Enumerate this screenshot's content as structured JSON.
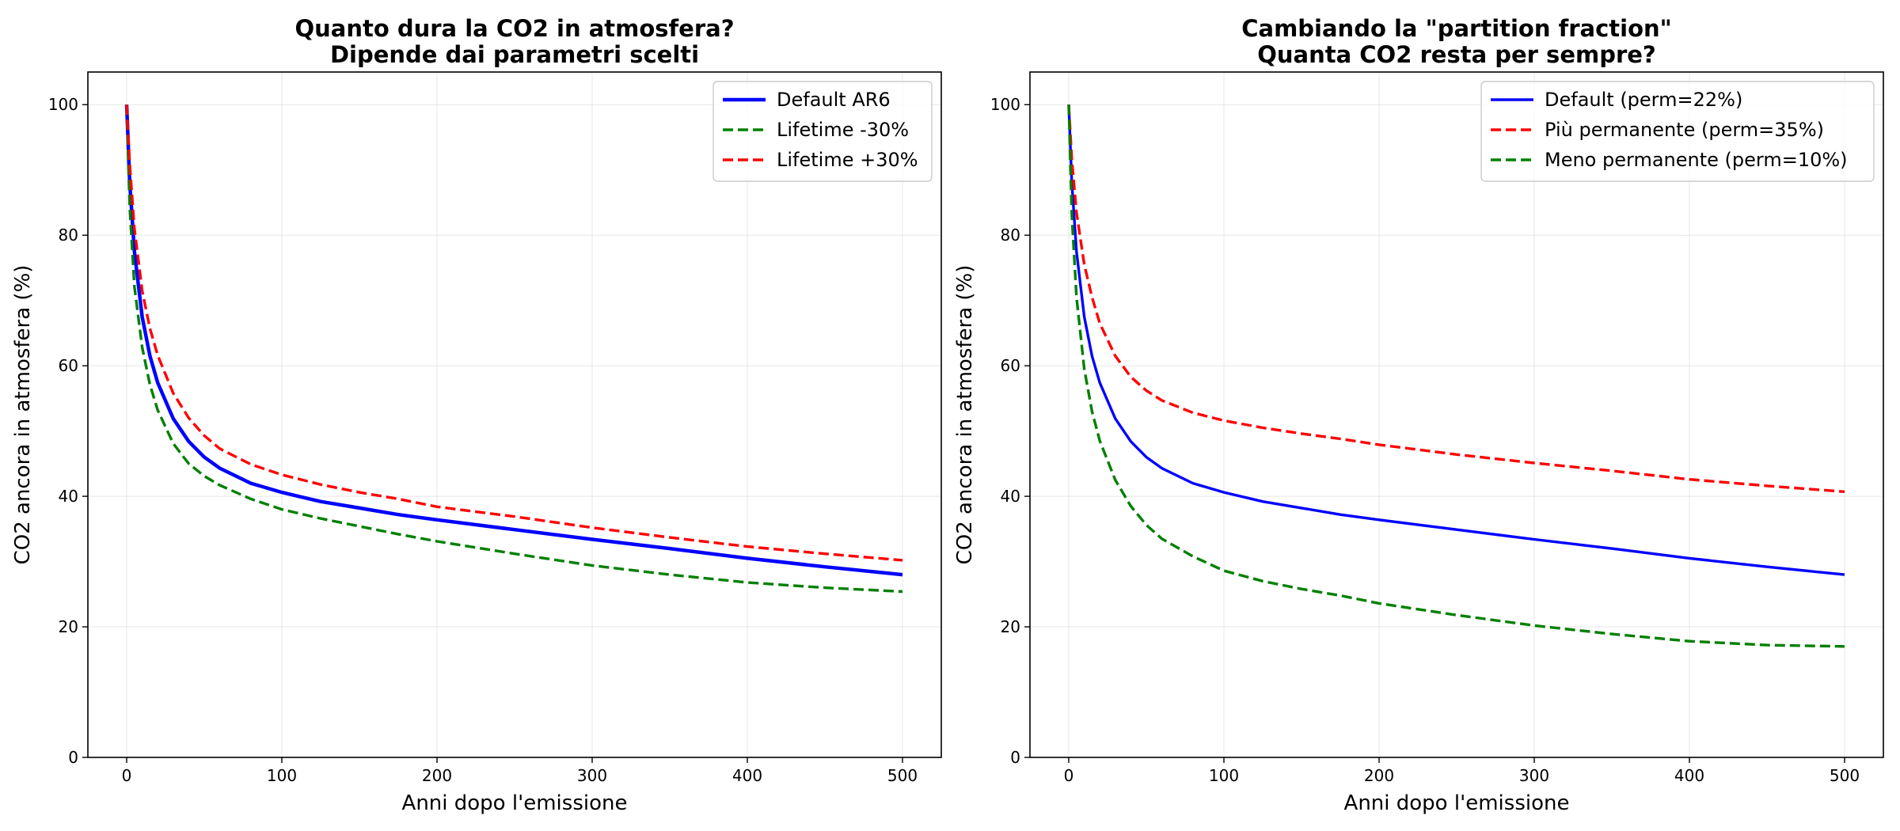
{
  "chart_data": [
    {
      "type": "line",
      "title": "Quanto dura la CO2 in atmosfera?",
      "subtitle": "Dipende dai parametri scelti",
      "xlabel": "Anni dopo l'emissione",
      "ylabel": "CO2 ancora in atmosfera (%)",
      "xlim": [
        -25,
        525
      ],
      "ylim": [
        0,
        105
      ],
      "xticks": [
        0,
        100,
        200,
        300,
        400,
        500
      ],
      "yticks": [
        0,
        20,
        40,
        60,
        80,
        100
      ],
      "grid": true,
      "legend_position": "top-right",
      "x": [
        0,
        2,
        5,
        10,
        15,
        20,
        30,
        40,
        50,
        60,
        80,
        100,
        125,
        150,
        175,
        200,
        250,
        300,
        350,
        400,
        450,
        500
      ],
      "series": [
        {
          "name": "Default AR6",
          "color": "#0000ff",
          "style": "solid",
          "emphasis": "thick",
          "values": [
            100,
            88.0,
            77.5,
            67.5,
            61.5,
            57.4,
            51.9,
            48.4,
            46.0,
            44.3,
            42.0,
            40.6,
            39.2,
            38.2,
            37.2,
            36.4,
            34.9,
            33.4,
            32.0,
            30.5,
            29.2,
            28.0
          ]
        },
        {
          "name": "Lifetime -30%",
          "color": "#008000",
          "style": "dashed",
          "values": [
            100,
            84.2,
            72.1,
            62.8,
            57.1,
            53.2,
            48.1,
            45.0,
            43.1,
            41.7,
            39.6,
            38.0,
            36.6,
            35.4,
            34.2,
            33.1,
            31.2,
            29.4,
            28.0,
            26.8,
            26.0,
            25.4
          ]
        },
        {
          "name": "Lifetime +30%",
          "color": "#ff0000",
          "style": "dashed",
          "values": [
            100,
            90.8,
            81.0,
            71.5,
            65.7,
            61.6,
            55.8,
            52.0,
            49.3,
            47.3,
            44.9,
            43.3,
            41.8,
            40.6,
            39.6,
            38.4,
            36.9,
            35.2,
            33.7,
            32.3,
            31.2,
            30.2
          ]
        }
      ]
    },
    {
      "type": "line",
      "title": "Cambiando la \"partition fraction\"",
      "subtitle": "Quanta CO2 resta per sempre?",
      "xlabel": "Anni dopo l'emissione",
      "ylabel": "CO2 ancora in atmosfera (%)",
      "xlim": [
        -25,
        525
      ],
      "ylim": [
        0,
        105
      ],
      "xticks": [
        0,
        100,
        200,
        300,
        400,
        500
      ],
      "yticks": [
        0,
        20,
        40,
        60,
        80,
        100
      ],
      "grid": true,
      "legend_position": "top-right",
      "x": [
        0,
        2,
        5,
        10,
        15,
        20,
        30,
        40,
        50,
        60,
        80,
        100,
        125,
        150,
        175,
        200,
        250,
        300,
        350,
        400,
        450,
        500
      ],
      "series": [
        {
          "name": "Default (perm=22%)",
          "color": "#0000ff",
          "style": "solid",
          "values": [
            100,
            88.0,
            77.5,
            67.5,
            61.5,
            57.4,
            51.9,
            48.4,
            46.0,
            44.3,
            42.0,
            40.6,
            39.2,
            38.2,
            37.2,
            36.4,
            34.9,
            33.4,
            32.0,
            30.5,
            29.2,
            28.0
          ]
        },
        {
          "name": "Più permanente (perm=35%)",
          "color": "#ff0000",
          "style": "dashed",
          "values": [
            100,
            91.5,
            83.5,
            75.5,
            70.5,
            66.5,
            61.5,
            58.3,
            56.2,
            54.7,
            52.8,
            51.6,
            50.5,
            49.6,
            48.8,
            47.9,
            46.4,
            45.1,
            43.9,
            42.6,
            41.6,
            40.7
          ]
        },
        {
          "name": "Meno permanente (perm=10%)",
          "color": "#008000",
          "style": "dashed",
          "values": [
            100,
            83.0,
            70.5,
            59.5,
            53.0,
            48.5,
            42.5,
            38.5,
            35.6,
            33.5,
            30.8,
            28.6,
            27.0,
            25.8,
            24.8,
            23.6,
            21.8,
            20.2,
            18.9,
            17.8,
            17.2,
            17.0
          ]
        }
      ]
    }
  ]
}
